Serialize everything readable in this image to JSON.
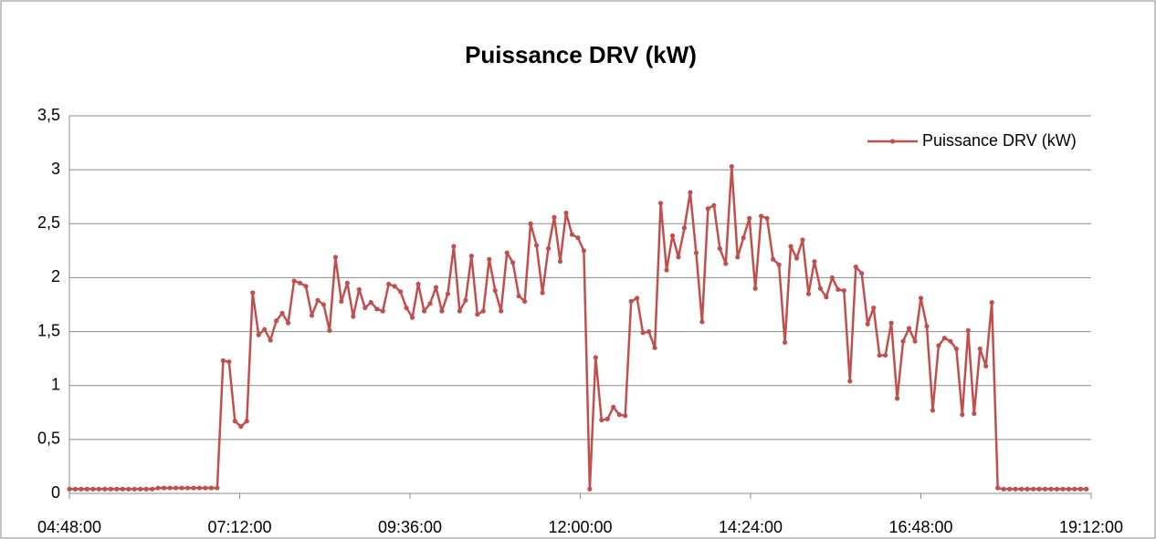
{
  "chart_data": {
    "type": "line",
    "title": "Puissance DRV (kW)",
    "x": [
      "04:48:00",
      "04:53:00",
      "04:58:00",
      "05:03:00",
      "05:08:00",
      "05:13:00",
      "05:18:00",
      "05:23:00",
      "05:28:00",
      "05:33:00",
      "05:38:00",
      "05:43:00",
      "05:48:00",
      "05:53:00",
      "05:58:00",
      "06:03:00",
      "06:08:00",
      "06:13:00",
      "06:18:00",
      "06:23:00",
      "06:28:00",
      "06:33:00",
      "06:38:00",
      "06:43:00",
      "06:48:00",
      "06:53:00",
      "06:58:00",
      "07:03:00",
      "07:08:00",
      "07:13:00",
      "07:18:00",
      "07:23:00",
      "07:28:00",
      "07:33:00",
      "07:38:00",
      "07:43:00",
      "07:48:00",
      "07:53:00",
      "07:58:00",
      "08:03:00",
      "08:08:00",
      "08:13:00",
      "08:18:00",
      "08:23:00",
      "08:28:00",
      "08:33:00",
      "08:38:00",
      "08:43:00",
      "08:48:00",
      "08:53:00",
      "08:58:00",
      "09:03:00",
      "09:08:00",
      "09:13:00",
      "09:18:00",
      "09:23:00",
      "09:28:00",
      "09:33:00",
      "09:38:00",
      "09:43:00",
      "09:48:00",
      "09:53:00",
      "09:58:00",
      "10:03:00",
      "10:08:00",
      "10:13:00",
      "10:18:00",
      "10:23:00",
      "10:28:00",
      "10:33:00",
      "10:38:00",
      "10:43:00",
      "10:48:00",
      "10:53:00",
      "10:58:00",
      "11:03:00",
      "11:08:00",
      "11:13:00",
      "11:18:00",
      "11:23:00",
      "11:28:00",
      "11:33:00",
      "11:38:00",
      "11:43:00",
      "11:48:00",
      "11:53:00",
      "11:58:00",
      "12:03:00",
      "12:08:00",
      "12:13:00",
      "12:18:00",
      "12:23:00",
      "12:28:00",
      "12:33:00",
      "12:38:00",
      "12:43:00",
      "12:48:00",
      "12:53:00",
      "12:58:00",
      "13:03:00",
      "13:08:00",
      "13:13:00",
      "13:18:00",
      "13:23:00",
      "13:28:00",
      "13:33:00",
      "13:38:00",
      "13:43:00",
      "13:48:00",
      "13:53:00",
      "13:58:00",
      "14:03:00",
      "14:08:00",
      "14:13:00",
      "14:18:00",
      "14:23:00",
      "14:28:00",
      "14:33:00",
      "14:38:00",
      "14:43:00",
      "14:48:00",
      "14:53:00",
      "14:58:00",
      "15:03:00",
      "15:08:00",
      "15:13:00",
      "15:18:00",
      "15:23:00",
      "15:28:00",
      "15:33:00",
      "15:38:00",
      "15:43:00",
      "15:48:00",
      "15:53:00",
      "15:58:00",
      "16:03:00",
      "16:08:00",
      "16:13:00",
      "16:18:00",
      "16:23:00",
      "16:28:00",
      "16:33:00",
      "16:38:00",
      "16:43:00",
      "16:48:00",
      "16:53:00",
      "16:58:00",
      "17:03:00",
      "17:08:00",
      "17:13:00",
      "17:18:00",
      "17:23:00",
      "17:28:00",
      "17:33:00",
      "17:38:00",
      "17:43:00",
      "17:48:00",
      "17:53:00",
      "17:58:00",
      "18:03:00",
      "18:08:00",
      "18:13:00",
      "18:18:00",
      "18:23:00",
      "18:28:00",
      "18:33:00",
      "18:38:00",
      "18:43:00",
      "18:48:00",
      "18:53:00",
      "18:58:00",
      "19:03:00",
      "19:08:00"
    ],
    "series": [
      {
        "name": "Puissance DRV (kW)",
        "color": "#c0504d",
        "values": [
          0.04,
          0.04,
          0.04,
          0.04,
          0.04,
          0.04,
          0.04,
          0.04,
          0.04,
          0.04,
          0.04,
          0.04,
          0.04,
          0.04,
          0.04,
          0.05,
          0.05,
          0.05,
          0.05,
          0.05,
          0.05,
          0.05,
          0.05,
          0.05,
          0.05,
          0.05,
          1.23,
          1.22,
          0.67,
          0.62,
          0.67,
          1.86,
          1.47,
          1.52,
          1.42,
          1.6,
          1.67,
          1.58,
          1.97,
          1.95,
          1.92,
          1.65,
          1.79,
          1.75,
          1.51,
          2.19,
          1.78,
          1.95,
          1.64,
          1.89,
          1.72,
          1.77,
          1.71,
          1.69,
          1.94,
          1.92,
          1.87,
          1.72,
          1.63,
          1.94,
          1.69,
          1.76,
          1.91,
          1.69,
          1.85,
          2.29,
          1.69,
          1.79,
          2.2,
          1.66,
          1.69,
          2.17,
          1.88,
          1.69,
          2.23,
          2.14,
          1.83,
          1.78,
          2.5,
          2.3,
          1.86,
          2.27,
          2.56,
          2.15,
          2.6,
          2.4,
          2.37,
          2.25,
          0.04,
          1.26,
          0.68,
          0.69,
          0.8,
          0.73,
          0.72,
          1.78,
          1.81,
          1.49,
          1.5,
          1.35,
          2.69,
          2.07,
          2.39,
          2.19,
          2.46,
          2.79,
          2.23,
          1.59,
          2.64,
          2.67,
          2.27,
          2.13,
          3.03,
          2.19,
          2.37,
          2.55,
          1.9,
          2.57,
          2.55,
          2.17,
          2.12,
          1.4,
          2.29,
          2.18,
          2.35,
          1.85,
          2.15,
          1.9,
          1.82,
          2.0,
          1.89,
          1.88,
          1.04,
          2.1,
          2.04,
          1.57,
          1.72,
          1.28,
          1.28,
          1.58,
          0.88,
          1.41,
          1.53,
          1.41,
          1.81,
          1.55,
          0.77,
          1.37,
          1.44,
          1.41,
          1.34,
          0.73,
          1.51,
          0.74,
          1.34,
          1.18,
          1.77,
          0.05,
          0.04,
          0.04,
          0.04,
          0.04,
          0.04,
          0.04,
          0.04,
          0.04,
          0.04,
          0.04,
          0.04,
          0.04,
          0.04,
          0.04,
          0.04
        ]
      }
    ],
    "xlim": [
      "04:48:00",
      "19:12:00"
    ],
    "xticks": [
      "04:48:00",
      "07:12:00",
      "09:36:00",
      "12:00:00",
      "14:24:00",
      "16:48:00",
      "19:12:00"
    ],
    "ylim": [
      0,
      3.5
    ],
    "yticks": [
      0,
      {
        "value": 0.5,
        "label": "0,5"
      },
      1,
      {
        "value": 1.5,
        "label": "1,5"
      },
      2,
      {
        "value": 2.5,
        "label": "2,5"
      },
      3,
      {
        "value": 3.5,
        "label": "3,5"
      }
    ],
    "grid": true,
    "legend": "top-right"
  }
}
